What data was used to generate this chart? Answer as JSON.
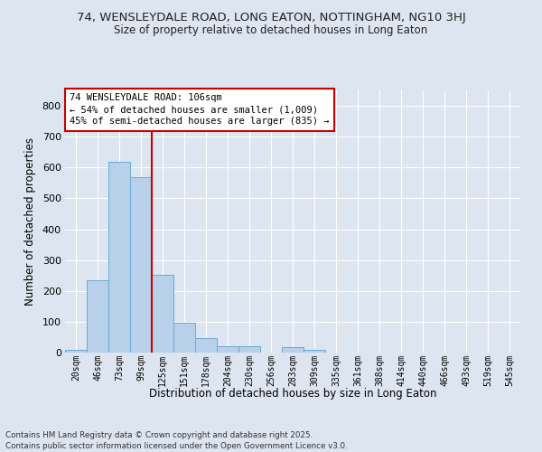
{
  "title": "74, WENSLEYDALE ROAD, LONG EATON, NOTTINGHAM, NG10 3HJ",
  "subtitle": "Size of property relative to detached houses in Long Eaton",
  "xlabel": "Distribution of detached houses by size in Long Eaton",
  "ylabel": "Number of detached properties",
  "footer_line1": "Contains HM Land Registry data © Crown copyright and database right 2025.",
  "footer_line2": "Contains public sector information licensed under the Open Government Licence v3.0.",
  "categories": [
    "20sqm",
    "46sqm",
    "73sqm",
    "99sqm",
    "125sqm",
    "151sqm",
    "178sqm",
    "204sqm",
    "230sqm",
    "256sqm",
    "283sqm",
    "309sqm",
    "335sqm",
    "361sqm",
    "388sqm",
    "414sqm",
    "440sqm",
    "466sqm",
    "493sqm",
    "519sqm",
    "545sqm"
  ],
  "values": [
    10,
    234,
    619,
    570,
    252,
    98,
    46,
    20,
    20,
    0,
    18,
    10,
    0,
    0,
    0,
    0,
    0,
    0,
    0,
    0,
    0
  ],
  "bar_color": "#b8d0ea",
  "bar_edge_color": "#6aaad4",
  "background_color": "#dde5f0",
  "grid_color": "#ffffff",
  "annotation_text": "74 WENSLEYDALE ROAD: 106sqm\n← 54% of detached houses are smaller (1,009)\n45% of semi-detached houses are larger (835) →",
  "annotation_box_color": "#ffffff",
  "annotation_box_edge_color": "#cc0000",
  "vline_color": "#cc0000",
  "vline_x": 3.5,
  "ylim": [
    0,
    850
  ],
  "yticks": [
    0,
    100,
    200,
    300,
    400,
    500,
    600,
    700,
    800
  ]
}
